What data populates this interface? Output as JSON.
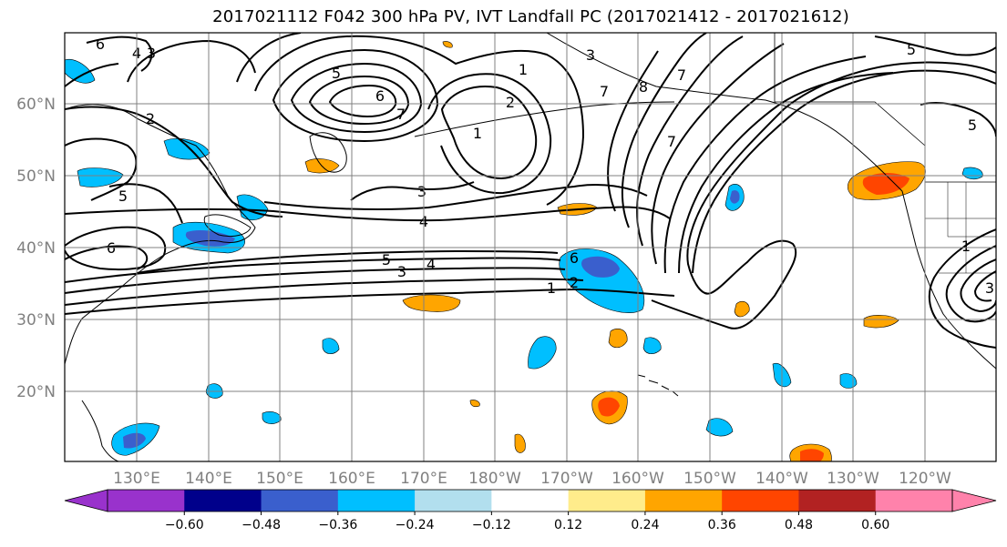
{
  "title": "2017021112 F042 300 hPa PV, IVT Landfall PC (2017021412 - 2017021612)",
  "lat_ticks": [
    "60°N",
    "50°N",
    "40°N",
    "30°N",
    "20°N"
  ],
  "lon_ticks": [
    "130°E",
    "140°E",
    "150°E",
    "160°E",
    "170°E",
    "180°W",
    "170°W",
    "160°W",
    "150°W",
    "140°W",
    "130°W",
    "120°W"
  ],
  "colorbar": {
    "labels": [
      "−0.60",
      "−0.48",
      "−0.36",
      "−0.24",
      "−0.12",
      "0.12",
      "0.24",
      "0.36",
      "0.48",
      "0.60"
    ],
    "colors": [
      "#9932cc",
      "#00008b",
      "#3a5fcd",
      "#00bfff",
      "#b2dfee",
      "#ffffff",
      "#ffec8b",
      "#ffa500",
      "#ff4500",
      "#b22222",
      "#ff82ab"
    ]
  },
  "contour_labels": [
    "6",
    "4",
    "3",
    "2",
    "5",
    "6",
    "7",
    "1",
    "1",
    "2",
    "3",
    "7",
    "8",
    "7",
    "5",
    "3",
    "4",
    "7",
    "5",
    "6",
    "3",
    "4",
    "5",
    "6",
    "2",
    "1",
    "5",
    "1",
    "3"
  ],
  "shading": {
    "negative_color": "#00bfff",
    "positive_color": "#ffa500"
  }
}
